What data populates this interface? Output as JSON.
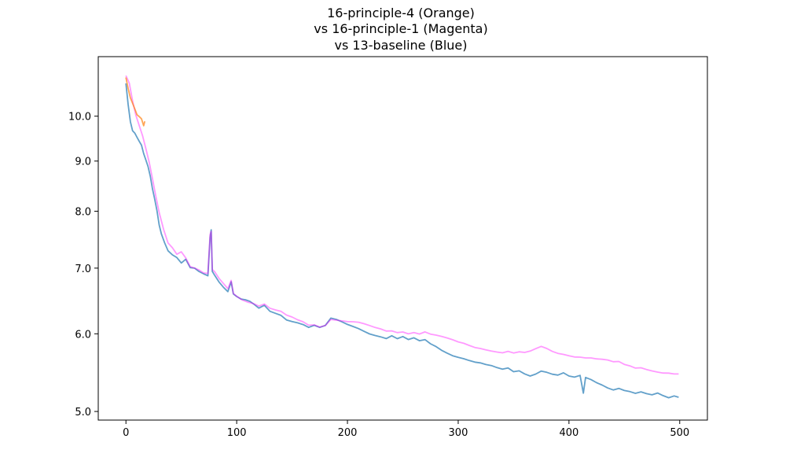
{
  "chart_data": {
    "type": "line",
    "title_lines": [
      "16-principle-4 (Orange)",
      "vs 16-principle-1 (Magenta)",
      "vs 13-baseline (Blue)"
    ],
    "xlabel": "",
    "ylabel": "",
    "y_scale": "log",
    "xlim": [
      -25,
      525
    ],
    "ylim": [
      4.9,
      11.5
    ],
    "x_ticks": [
      0,
      100,
      200,
      300,
      400,
      500
    ],
    "x_tick_labels": [
      "0",
      "100",
      "200",
      "300",
      "400",
      "500"
    ],
    "y_ticks": [
      5.0,
      6.0,
      7.0,
      8.0,
      9.0,
      10.0
    ],
    "y_tick_labels": [
      "5.0",
      "6.0",
      "7.0",
      "8.0",
      "9.0",
      "10.0"
    ],
    "grid": false,
    "series": [
      {
        "color": "#1f77b4",
        "opacity": 0.7,
        "points": [
          [
            0,
            10.8
          ],
          [
            2,
            10.3
          ],
          [
            4,
            9.9
          ],
          [
            6,
            9.7
          ],
          [
            8,
            9.65
          ],
          [
            10,
            9.55
          ],
          [
            12,
            9.45
          ],
          [
            14,
            9.35
          ],
          [
            16,
            9.15
          ],
          [
            18,
            9.0
          ],
          [
            20,
            8.85
          ],
          [
            22,
            8.65
          ],
          [
            24,
            8.4
          ],
          [
            26,
            8.2
          ],
          [
            28,
            8.0
          ],
          [
            30,
            7.75
          ],
          [
            32,
            7.6
          ],
          [
            35,
            7.45
          ],
          [
            38,
            7.32
          ],
          [
            42,
            7.25
          ],
          [
            46,
            7.2
          ],
          [
            50,
            7.1
          ],
          [
            54,
            7.15
          ],
          [
            58,
            7.0
          ],
          [
            62,
            6.98
          ],
          [
            66,
            6.92
          ],
          [
            70,
            6.88
          ],
          [
            74,
            6.85
          ],
          [
            76,
            7.5
          ],
          [
            77,
            7.65
          ],
          [
            78,
            6.95
          ],
          [
            80,
            6.9
          ],
          [
            84,
            6.8
          ],
          [
            88,
            6.72
          ],
          [
            92,
            6.65
          ],
          [
            95,
            6.8
          ],
          [
            97,
            6.6
          ],
          [
            100,
            6.55
          ],
          [
            104,
            6.5
          ],
          [
            108,
            6.48
          ],
          [
            112,
            6.45
          ],
          [
            116,
            6.4
          ],
          [
            120,
            6.35
          ],
          [
            125,
            6.4
          ],
          [
            130,
            6.32
          ],
          [
            135,
            6.3
          ],
          [
            140,
            6.28
          ],
          [
            145,
            6.22
          ],
          [
            150,
            6.2
          ],
          [
            155,
            6.18
          ],
          [
            160,
            6.15
          ],
          [
            165,
            6.1
          ],
          [
            170,
            6.12
          ],
          [
            175,
            6.08
          ],
          [
            180,
            6.1
          ],
          [
            185,
            6.2
          ],
          [
            190,
            6.18
          ],
          [
            195,
            6.15
          ],
          [
            200,
            6.12
          ],
          [
            205,
            6.1
          ],
          [
            210,
            6.08
          ],
          [
            215,
            6.05
          ],
          [
            220,
            6.02
          ],
          [
            225,
            6.0
          ],
          [
            230,
            5.98
          ],
          [
            235,
            5.95
          ],
          [
            240,
            5.98
          ],
          [
            245,
            5.93
          ],
          [
            250,
            5.95
          ],
          [
            255,
            5.9
          ],
          [
            260,
            5.92
          ],
          [
            265,
            5.88
          ],
          [
            270,
            5.9
          ],
          [
            275,
            5.85
          ],
          [
            280,
            5.82
          ],
          [
            285,
            5.78
          ],
          [
            290,
            5.75
          ],
          [
            295,
            5.72
          ],
          [
            300,
            5.7
          ],
          [
            305,
            5.68
          ],
          [
            310,
            5.65
          ],
          [
            315,
            5.62
          ],
          [
            320,
            5.6
          ],
          [
            325,
            5.57
          ],
          [
            330,
            5.55
          ],
          [
            335,
            5.52
          ],
          [
            340,
            5.5
          ],
          [
            345,
            5.52
          ],
          [
            350,
            5.48
          ],
          [
            355,
            5.5
          ],
          [
            360,
            5.47
          ],
          [
            365,
            5.45
          ],
          [
            370,
            5.48
          ],
          [
            375,
            5.52
          ],
          [
            380,
            5.5
          ],
          [
            385,
            5.47
          ],
          [
            390,
            5.45
          ],
          [
            395,
            5.47
          ],
          [
            400,
            5.42
          ],
          [
            405,
            5.4
          ],
          [
            410,
            5.42
          ],
          [
            413,
            5.2
          ],
          [
            415,
            5.4
          ],
          [
            420,
            5.38
          ],
          [
            425,
            5.35
          ],
          [
            430,
            5.33
          ],
          [
            435,
            5.3
          ],
          [
            440,
            5.28
          ],
          [
            445,
            5.3
          ],
          [
            450,
            5.27
          ],
          [
            455,
            5.25
          ],
          [
            460,
            5.22
          ],
          [
            465,
            5.23
          ],
          [
            470,
            5.2
          ],
          [
            475,
            5.18
          ],
          [
            480,
            5.2
          ],
          [
            485,
            5.17
          ],
          [
            490,
            5.15
          ],
          [
            495,
            5.18
          ],
          [
            499,
            5.17
          ]
        ]
      },
      {
        "color": "#ff00ff",
        "opacity": 0.4,
        "points": [
          [
            0,
            11.0
          ],
          [
            3,
            10.85
          ],
          [
            6,
            10.4
          ],
          [
            9,
            10.05
          ],
          [
            12,
            9.8
          ],
          [
            15,
            9.55
          ],
          [
            18,
            9.25
          ],
          [
            21,
            8.95
          ],
          [
            24,
            8.6
          ],
          [
            27,
            8.25
          ],
          [
            30,
            7.95
          ],
          [
            34,
            7.65
          ],
          [
            38,
            7.42
          ],
          [
            42,
            7.35
          ],
          [
            46,
            7.25
          ],
          [
            50,
            7.3
          ],
          [
            54,
            7.2
          ],
          [
            58,
            7.05
          ],
          [
            62,
            7.02
          ],
          [
            66,
            6.98
          ],
          [
            70,
            6.92
          ],
          [
            74,
            6.9
          ],
          [
            76,
            7.55
          ],
          [
            77,
            7.6
          ],
          [
            78,
            6.95
          ],
          [
            80,
            6.92
          ],
          [
            84,
            6.82
          ],
          [
            88,
            6.75
          ],
          [
            92,
            6.68
          ],
          [
            95,
            6.82
          ],
          [
            97,
            6.62
          ],
          [
            100,
            6.58
          ],
          [
            105,
            6.52
          ],
          [
            110,
            6.48
          ],
          [
            115,
            6.45
          ],
          [
            120,
            6.4
          ],
          [
            125,
            6.42
          ],
          [
            130,
            6.35
          ],
          [
            135,
            6.32
          ],
          [
            140,
            6.3
          ],
          [
            145,
            6.25
          ],
          [
            150,
            6.23
          ],
          [
            155,
            6.2
          ],
          [
            160,
            6.18
          ],
          [
            165,
            6.14
          ],
          [
            170,
            6.15
          ],
          [
            175,
            6.12
          ],
          [
            180,
            6.14
          ],
          [
            185,
            6.22
          ],
          [
            190,
            6.2
          ],
          [
            195,
            6.18
          ],
          [
            200,
            6.16
          ],
          [
            205,
            6.15
          ],
          [
            210,
            6.14
          ],
          [
            215,
            6.12
          ],
          [
            220,
            6.1
          ],
          [
            225,
            6.08
          ],
          [
            230,
            6.07
          ],
          [
            235,
            6.05
          ],
          [
            240,
            6.06
          ],
          [
            245,
            6.04
          ],
          [
            250,
            6.05
          ],
          [
            255,
            6.02
          ],
          [
            260,
            6.03
          ],
          [
            265,
            6.0
          ],
          [
            270,
            6.02
          ],
          [
            275,
            5.98
          ],
          [
            280,
            5.96
          ],
          [
            285,
            5.94
          ],
          [
            290,
            5.92
          ],
          [
            295,
            5.9
          ],
          [
            300,
            5.88
          ],
          [
            305,
            5.87
          ],
          [
            310,
            5.85
          ],
          [
            315,
            5.83
          ],
          [
            320,
            5.82
          ],
          [
            325,
            5.8
          ],
          [
            330,
            5.78
          ],
          [
            335,
            5.76
          ],
          [
            340,
            5.74
          ],
          [
            345,
            5.75
          ],
          [
            350,
            5.72
          ],
          [
            355,
            5.73
          ],
          [
            360,
            5.72
          ],
          [
            365,
            5.74
          ],
          [
            370,
            5.78
          ],
          [
            375,
            5.82
          ],
          [
            380,
            5.8
          ],
          [
            385,
            5.77
          ],
          [
            390,
            5.75
          ],
          [
            395,
            5.74
          ],
          [
            400,
            5.72
          ],
          [
            405,
            5.7
          ],
          [
            410,
            5.69
          ],
          [
            415,
            5.67
          ],
          [
            420,
            5.66
          ],
          [
            425,
            5.64
          ],
          [
            430,
            5.63
          ],
          [
            435,
            5.62
          ],
          [
            440,
            5.6
          ],
          [
            445,
            5.61
          ],
          [
            450,
            5.58
          ],
          [
            455,
            5.57
          ],
          [
            460,
            5.55
          ],
          [
            465,
            5.56
          ],
          [
            470,
            5.54
          ],
          [
            475,
            5.52
          ],
          [
            480,
            5.5
          ],
          [
            485,
            5.48
          ],
          [
            490,
            5.47
          ],
          [
            495,
            5.45
          ],
          [
            499,
            5.46
          ]
        ]
      },
      {
        "color": "#ff7f0e",
        "opacity": 0.7,
        "points": [
          [
            0,
            10.95
          ],
          [
            2,
            10.7
          ],
          [
            4,
            10.45
          ],
          [
            6,
            10.3
          ],
          [
            8,
            10.15
          ],
          [
            10,
            10.0
          ],
          [
            12,
            9.95
          ],
          [
            14,
            9.9
          ],
          [
            16,
            9.75
          ],
          [
            17,
            9.88
          ]
        ]
      }
    ]
  }
}
